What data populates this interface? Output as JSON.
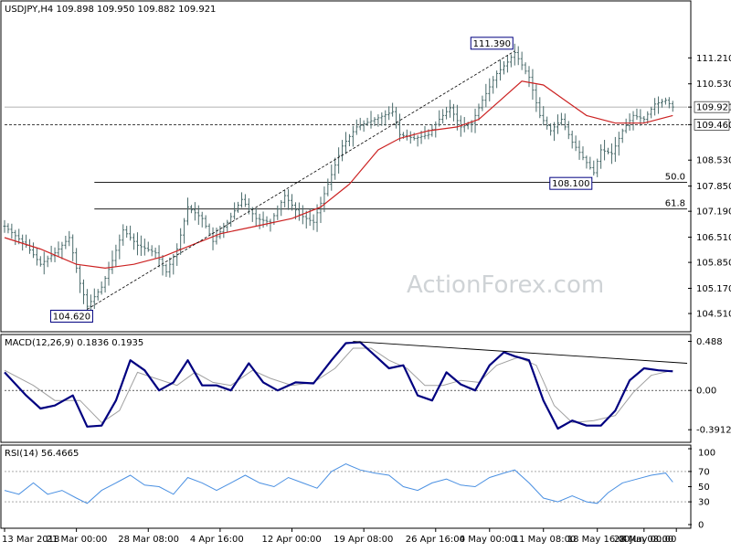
{
  "chart_data": {
    "type": "ohlc",
    "symbol_header": "USDJPY,H4  109.898 109.950 109.882 109.921",
    "watermark": "ActionForex.com",
    "colors": {
      "price": "#4a6b6b",
      "ma": "#cc2222",
      "macd_line": "#000080",
      "macd_signal": "#a0a0a0",
      "rsi": "#4a90e2",
      "trend": "#000000",
      "level": "#000000",
      "box_border": "#000080"
    },
    "price_panel": {
      "ylim": [
        104.2,
        112.2
      ],
      "y_ticks": [
        "111.210",
        "110.530",
        "109.921",
        "109.460",
        "108.530",
        "107.850",
        "107.190",
        "106.510",
        "105.850",
        "105.170",
        "104.510"
      ],
      "current_price": 109.921,
      "horizontal_levels": [
        {
          "value": 109.46,
          "label": "109.460",
          "style": "dashed"
        },
        {
          "value": 107.95,
          "label": "50.0",
          "style": "solid"
        },
        {
          "value": 107.25,
          "label": "61.8",
          "style": "solid"
        },
        {
          "value": 109.921,
          "label": "109.921",
          "style": "solid-light"
        }
      ],
      "annotations": [
        {
          "label": "111.390",
          "bar": 142,
          "value": 111.39
        },
        {
          "label": "108.100",
          "bar": 164,
          "value": 108.1
        },
        {
          "label": "104.620",
          "bar": 23,
          "value": 104.62
        }
      ],
      "close_path": [
        [
          0,
          106.8
        ],
        [
          6,
          106.3
        ],
        [
          10,
          105.8
        ],
        [
          14,
          106.1
        ],
        [
          18,
          106.5
        ],
        [
          21,
          105.3
        ],
        [
          23,
          104.7
        ],
        [
          27,
          105.2
        ],
        [
          30,
          105.9
        ],
        [
          33,
          106.7
        ],
        [
          37,
          106.3
        ],
        [
          42,
          106.1
        ],
        [
          45,
          105.6
        ],
        [
          48,
          106.2
        ],
        [
          51,
          107.3
        ],
        [
          55,
          107.0
        ],
        [
          58,
          106.4
        ],
        [
          62,
          106.9
        ],
        [
          66,
          107.5
        ],
        [
          70,
          107.0
        ],
        [
          74,
          106.9
        ],
        [
          78,
          107.6
        ],
        [
          82,
          107.1
        ],
        [
          86,
          106.9
        ],
        [
          90,
          107.9
        ],
        [
          94,
          108.9
        ],
        [
          98,
          109.4
        ],
        [
          103,
          109.6
        ],
        [
          108,
          109.8
        ],
        [
          110,
          109.2
        ],
        [
          114,
          109.1
        ],
        [
          118,
          109.2
        ],
        [
          121,
          109.6
        ],
        [
          124,
          109.9
        ],
        [
          127,
          109.4
        ],
        [
          130,
          109.5
        ],
        [
          133,
          110.1
        ],
        [
          137,
          110.8
        ],
        [
          140,
          111.1
        ],
        [
          142,
          111.35
        ],
        [
          146,
          110.7
        ],
        [
          149,
          109.7
        ],
        [
          152,
          109.3
        ],
        [
          155,
          109.6
        ],
        [
          158,
          109.0
        ],
        [
          161,
          108.6
        ],
        [
          164,
          108.2
        ],
        [
          166,
          108.8
        ],
        [
          169,
          108.7
        ],
        [
          172,
          109.3
        ],
        [
          175,
          109.7
        ],
        [
          178,
          109.6
        ],
        [
          181,
          110.0
        ],
        [
          184,
          110.1
        ],
        [
          186,
          109.921
        ]
      ],
      "ma_path": [
        [
          0,
          106.5
        ],
        [
          10,
          106.2
        ],
        [
          20,
          105.8
        ],
        [
          28,
          105.7
        ],
        [
          36,
          105.8
        ],
        [
          44,
          106.0
        ],
        [
          52,
          106.3
        ],
        [
          60,
          106.6
        ],
        [
          70,
          106.8
        ],
        [
          80,
          107.0
        ],
        [
          88,
          107.3
        ],
        [
          96,
          107.9
        ],
        [
          104,
          108.8
        ],
        [
          110,
          109.1
        ],
        [
          118,
          109.3
        ],
        [
          126,
          109.4
        ],
        [
          132,
          109.6
        ],
        [
          138,
          110.1
        ],
        [
          144,
          110.6
        ],
        [
          150,
          110.5
        ],
        [
          156,
          110.1
        ],
        [
          162,
          109.7
        ],
        [
          170,
          109.5
        ],
        [
          178,
          109.5
        ],
        [
          186,
          109.7
        ]
      ],
      "trend_lines": [
        {
          "from": [
            23,
            104.62
          ],
          "to": [
            142,
            111.39
          ]
        }
      ]
    },
    "macd_panel": {
      "label": "MACD(12,26,9) 0.1836 0.1935",
      "ylim": [
        -0.48,
        0.52
      ],
      "y_ticks": [
        "0.488",
        "0.00",
        "-0.3912"
      ],
      "line": [
        [
          0,
          0.18
        ],
        [
          6,
          -0.05
        ],
        [
          10,
          -0.18
        ],
        [
          14,
          -0.15
        ],
        [
          19,
          -0.05
        ],
        [
          23,
          -0.36
        ],
        [
          27,
          -0.35
        ],
        [
          31,
          -0.1
        ],
        [
          35,
          0.3
        ],
        [
          39,
          0.2
        ],
        [
          43,
          0.0
        ],
        [
          47,
          0.08
        ],
        [
          51,
          0.3
        ],
        [
          55,
          0.05
        ],
        [
          59,
          0.05
        ],
        [
          63,
          0.0
        ],
        [
          68,
          0.27
        ],
        [
          72,
          0.08
        ],
        [
          76,
          0.0
        ],
        [
          81,
          0.08
        ],
        [
          86,
          0.07
        ],
        [
          91,
          0.3
        ],
        [
          95,
          0.47
        ],
        [
          99,
          0.48
        ],
        [
          103,
          0.35
        ],
        [
          107,
          0.22
        ],
        [
          111,
          0.25
        ],
        [
          115,
          -0.05
        ],
        [
          119,
          -0.1
        ],
        [
          123,
          0.18
        ],
        [
          127,
          0.06
        ],
        [
          131,
          0.0
        ],
        [
          135,
          0.25
        ],
        [
          139,
          0.38
        ],
        [
          142,
          0.34
        ],
        [
          146,
          0.3
        ],
        [
          150,
          -0.1
        ],
        [
          154,
          -0.38
        ],
        [
          158,
          -0.3
        ],
        [
          162,
          -0.35
        ],
        [
          166,
          -0.35
        ],
        [
          170,
          -0.2
        ],
        [
          174,
          0.1
        ],
        [
          178,
          0.22
        ],
        [
          182,
          0.2
        ],
        [
          186,
          0.19
        ]
      ],
      "signal": [
        [
          0,
          0.2
        ],
        [
          8,
          0.05
        ],
        [
          14,
          -0.1
        ],
        [
          21,
          -0.1
        ],
        [
          27,
          -0.32
        ],
        [
          32,
          -0.2
        ],
        [
          37,
          0.18
        ],
        [
          42,
          0.12
        ],
        [
          48,
          0.05
        ],
        [
          53,
          0.18
        ],
        [
          58,
          0.08
        ],
        [
          63,
          0.05
        ],
        [
          69,
          0.2
        ],
        [
          74,
          0.12
        ],
        [
          80,
          0.05
        ],
        [
          86,
          0.08
        ],
        [
          92,
          0.22
        ],
        [
          97,
          0.42
        ],
        [
          102,
          0.42
        ],
        [
          107,
          0.3
        ],
        [
          112,
          0.22
        ],
        [
          117,
          0.05
        ],
        [
          122,
          0.05
        ],
        [
          127,
          0.1
        ],
        [
          132,
          0.08
        ],
        [
          137,
          0.25
        ],
        [
          143,
          0.33
        ],
        [
          148,
          0.25
        ],
        [
          153,
          -0.15
        ],
        [
          158,
          -0.32
        ],
        [
          164,
          -0.3
        ],
        [
          170,
          -0.25
        ],
        [
          175,
          -0.02
        ],
        [
          180,
          0.15
        ],
        [
          186,
          0.2
        ]
      ],
      "trend_lines": [
        {
          "from": [
            97,
            0.488
          ],
          "to": [
            190,
            0.27
          ]
        }
      ]
    },
    "rsi_panel": {
      "label": "RSI(14) 56.4665",
      "ylim": [
        0,
        100
      ],
      "y_ticks": [
        "100",
        "70",
        "50",
        "30",
        "0"
      ],
      "tick_values": [
        100,
        70,
        50,
        30,
        0
      ],
      "levels": [
        70,
        30
      ],
      "line": [
        [
          0,
          45
        ],
        [
          4,
          40
        ],
        [
          8,
          55
        ],
        [
          12,
          40
        ],
        [
          16,
          45
        ],
        [
          20,
          35
        ],
        [
          23,
          28
        ],
        [
          27,
          45
        ],
        [
          31,
          55
        ],
        [
          35,
          65
        ],
        [
          39,
          52
        ],
        [
          43,
          50
        ],
        [
          47,
          40
        ],
        [
          51,
          62
        ],
        [
          55,
          55
        ],
        [
          59,
          45
        ],
        [
          63,
          55
        ],
        [
          67,
          65
        ],
        [
          71,
          55
        ],
        [
          75,
          50
        ],
        [
          79,
          62
        ],
        [
          83,
          55
        ],
        [
          87,
          48
        ],
        [
          91,
          70
        ],
        [
          95,
          80
        ],
        [
          99,
          72
        ],
        [
          103,
          68
        ],
        [
          107,
          65
        ],
        [
          111,
          50
        ],
        [
          115,
          45
        ],
        [
          119,
          55
        ],
        [
          123,
          60
        ],
        [
          127,
          52
        ],
        [
          131,
          50
        ],
        [
          135,
          62
        ],
        [
          139,
          68
        ],
        [
          142,
          72
        ],
        [
          146,
          55
        ],
        [
          150,
          35
        ],
        [
          154,
          30
        ],
        [
          158,
          38
        ],
        [
          162,
          30
        ],
        [
          165,
          28
        ],
        [
          168,
          42
        ],
        [
          172,
          55
        ],
        [
          176,
          60
        ],
        [
          180,
          65
        ],
        [
          184,
          68
        ],
        [
          186,
          56
        ]
      ]
    },
    "x_axis": {
      "labels": [
        "13 Mar 2018",
        "21 Mar 00:00",
        "28 Mar 08:00",
        "4 Apr 16:00",
        "12 Apr 00:00",
        "19 Apr 08:00",
        "26 Apr 16:00",
        "4 May 00:00",
        "11 May 08:00",
        "18 May 16:00",
        "28 May 00:00",
        "4 Jun 08:00"
      ],
      "label_bars": [
        0,
        20,
        40,
        60,
        80,
        100,
        120,
        135,
        150,
        165,
        178,
        187
      ]
    }
  }
}
